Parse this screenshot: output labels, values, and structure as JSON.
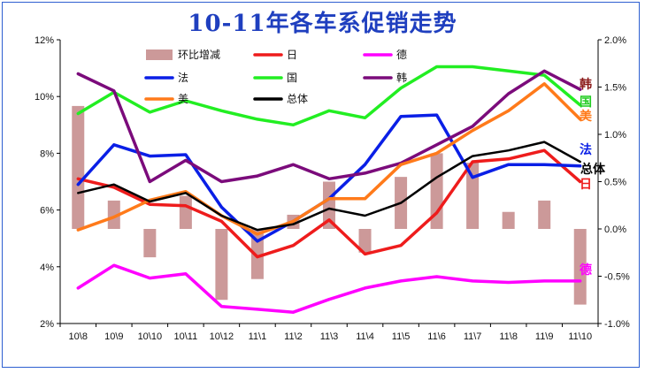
{
  "chart_data": {
    "type": "line",
    "title": "10-11年各车系促销走势",
    "categories": [
      "10\\8",
      "10\\9",
      "10\\10",
      "10\\11",
      "10\\12",
      "11\\1",
      "11\\2",
      "11\\3",
      "11\\4",
      "11\\5",
      "11\\6",
      "11\\7",
      "11\\8",
      "11\\9",
      "11\\10"
    ],
    "y_left": {
      "ylim": [
        2,
        12
      ],
      "ticks": [
        "2%",
        "4%",
        "6%",
        "8%",
        "10%",
        "12%"
      ],
      "tick_values": [
        2,
        4,
        6,
        8,
        10,
        12
      ]
    },
    "y_right": {
      "ylim": [
        -1.0,
        2.0
      ],
      "ticks": [
        "-1.0%",
        "-0.5%",
        "0.0%",
        "0.5%",
        "1.0%",
        "1.5%",
        "2.0%"
      ],
      "tick_values": [
        -1.0,
        -0.5,
        0,
        0.5,
        1.0,
        1.5,
        2.0
      ]
    },
    "grid": false,
    "legend_position": "top",
    "bar_series": {
      "name": "环比增减",
      "color": "#cc9999",
      "axis": "right",
      "values": [
        1.3,
        0.3,
        -0.3,
        0.35,
        -0.75,
        -0.53,
        0.15,
        0.5,
        -0.25,
        0.55,
        0.8,
        0.7,
        0.18,
        0.3,
        -0.8
      ]
    },
    "series": [
      {
        "name": "日",
        "color": "#ee1c1c",
        "end_label": "日",
        "values": [
          7.1,
          6.8,
          6.2,
          6.15,
          5.6,
          4.35,
          4.75,
          5.65,
          4.45,
          4.75,
          5.9,
          7.7,
          7.8,
          8.1,
          7.0
        ]
      },
      {
        "name": "德",
        "color": "#ff00ff",
        "end_label": "德",
        "values": [
          3.25,
          4.05,
          3.6,
          3.75,
          2.6,
          2.5,
          2.4,
          2.85,
          3.25,
          3.5,
          3.65,
          3.5,
          3.45,
          3.5,
          3.5
        ]
      },
      {
        "name": "法",
        "color": "#0a1fe6",
        "end_label": "法",
        "values": [
          6.9,
          8.3,
          7.9,
          7.95,
          6.1,
          4.9,
          5.6,
          6.4,
          7.6,
          9.3,
          9.35,
          7.15,
          7.6,
          7.6,
          7.55
        ]
      },
      {
        "name": "国",
        "color": "#22ee22",
        "end_label": "国",
        "values": [
          9.4,
          10.15,
          9.45,
          9.85,
          9.5,
          9.2,
          9.0,
          9.5,
          9.25,
          10.3,
          11.05,
          11.05,
          10.9,
          10.75,
          9.7
        ]
      },
      {
        "name": "韩",
        "color": "#7b0b7b",
        "end_label": "韩",
        "values": [
          10.8,
          10.2,
          7.0,
          7.75,
          7.0,
          7.2,
          7.6,
          7.1,
          7.3,
          7.65,
          8.3,
          8.95,
          10.1,
          10.9,
          10.25
        ]
      },
      {
        "name": "美",
        "color": "#ff7a1a",
        "end_label": "美",
        "values": [
          5.3,
          5.75,
          6.35,
          6.65,
          5.8,
          5.15,
          5.6,
          6.4,
          6.4,
          7.6,
          8.0,
          8.8,
          9.5,
          10.45,
          9.2
        ]
      },
      {
        "name": "总体",
        "color": "#000000",
        "end_label": "总体",
        "values": [
          6.6,
          6.9,
          6.3,
          6.6,
          5.8,
          5.3,
          5.5,
          6.05,
          5.8,
          6.25,
          7.15,
          7.9,
          8.1,
          8.4,
          7.7
        ]
      }
    ]
  }
}
